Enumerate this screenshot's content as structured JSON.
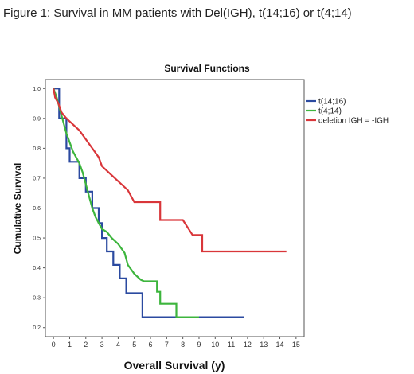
{
  "caption": {
    "prefix": "Figure 1: Survival in MM patients with Del(IGH), ",
    "underlined": "t",
    "suffix": "(14;16) or t(4;14)"
  },
  "chart_data": {
    "type": "line",
    "title": "Survival Functions",
    "xlabel": "Overall Survival (y)",
    "ylabel": "Cumulative Survival",
    "xlim": [
      -0.5,
      15.5
    ],
    "ylim": [
      0.17,
      1.03
    ],
    "xticks": [
      0,
      1,
      2,
      3,
      4,
      5,
      6,
      7,
      8,
      9,
      10,
      11,
      12,
      13,
      14,
      15
    ],
    "yticks": [
      0.2,
      0.3,
      0.4,
      0.5,
      0.6,
      0.7,
      0.8,
      0.9,
      1.0
    ],
    "ytick_labels": [
      "0.2",
      "0.3",
      "0.4",
      "0.5",
      "0.6",
      "0.7",
      "0.8",
      "0.9",
      "1.0"
    ],
    "grid": false,
    "legend_position": "top-right",
    "series": [
      {
        "name": "t(14;16)",
        "color": "#2b4aa0",
        "points": [
          [
            0,
            1.0
          ],
          [
            0.35,
            1.0
          ],
          [
            0.35,
            0.9
          ],
          [
            0.8,
            0.9
          ],
          [
            0.8,
            0.8
          ],
          [
            1.0,
            0.8
          ],
          [
            1.0,
            0.755
          ],
          [
            1.6,
            0.755
          ],
          [
            1.6,
            0.7
          ],
          [
            2.0,
            0.7
          ],
          [
            2.0,
            0.655
          ],
          [
            2.4,
            0.655
          ],
          [
            2.4,
            0.6
          ],
          [
            2.8,
            0.6
          ],
          [
            2.8,
            0.55
          ],
          [
            3.0,
            0.55
          ],
          [
            3.0,
            0.5
          ],
          [
            3.3,
            0.5
          ],
          [
            3.3,
            0.455
          ],
          [
            3.7,
            0.455
          ],
          [
            3.7,
            0.41
          ],
          [
            4.1,
            0.41
          ],
          [
            4.1,
            0.365
          ],
          [
            4.5,
            0.365
          ],
          [
            4.5,
            0.315
          ],
          [
            5.5,
            0.315
          ],
          [
            5.5,
            0.235
          ],
          [
            11.8,
            0.235
          ]
        ]
      },
      {
        "name": "t(4;14)",
        "color": "#3db53d",
        "points": [
          [
            0,
            1.0
          ],
          [
            0.2,
            0.97
          ],
          [
            0.4,
            0.93
          ],
          [
            0.6,
            0.89
          ],
          [
            0.8,
            0.85
          ],
          [
            1.0,
            0.82
          ],
          [
            1.2,
            0.79
          ],
          [
            1.4,
            0.77
          ],
          [
            1.6,
            0.75
          ],
          [
            1.8,
            0.72
          ],
          [
            2.0,
            0.68
          ],
          [
            2.2,
            0.64
          ],
          [
            2.4,
            0.6
          ],
          [
            2.6,
            0.57
          ],
          [
            2.8,
            0.55
          ],
          [
            3.0,
            0.53
          ],
          [
            3.3,
            0.52
          ],
          [
            3.6,
            0.5
          ],
          [
            4.0,
            0.48
          ],
          [
            4.4,
            0.45
          ],
          [
            4.6,
            0.41
          ],
          [
            5.0,
            0.38
          ],
          [
            5.4,
            0.36
          ],
          [
            5.6,
            0.355
          ],
          [
            6.4,
            0.355
          ],
          [
            6.4,
            0.32
          ],
          [
            6.6,
            0.32
          ],
          [
            6.6,
            0.28
          ],
          [
            7.6,
            0.28
          ],
          [
            7.6,
            0.235
          ],
          [
            9.0,
            0.235
          ]
        ]
      },
      {
        "name": "deletion IGH = -IGH",
        "color": "#d9363a",
        "points": [
          [
            0,
            1.0
          ],
          [
            0.1,
            0.97
          ],
          [
            0.3,
            0.95
          ],
          [
            0.5,
            0.92
          ],
          [
            0.8,
            0.9
          ],
          [
            1.2,
            0.88
          ],
          [
            1.6,
            0.86
          ],
          [
            2.0,
            0.83
          ],
          [
            2.4,
            0.8
          ],
          [
            2.8,
            0.77
          ],
          [
            3.0,
            0.74
          ],
          [
            3.4,
            0.72
          ],
          [
            3.8,
            0.7
          ],
          [
            4.2,
            0.68
          ],
          [
            4.6,
            0.66
          ],
          [
            5.0,
            0.62
          ],
          [
            6.6,
            0.62
          ],
          [
            6.6,
            0.56
          ],
          [
            8.0,
            0.56
          ],
          [
            8.6,
            0.51
          ],
          [
            9.2,
            0.51
          ],
          [
            9.2,
            0.455
          ],
          [
            14.4,
            0.455
          ]
        ]
      }
    ]
  }
}
